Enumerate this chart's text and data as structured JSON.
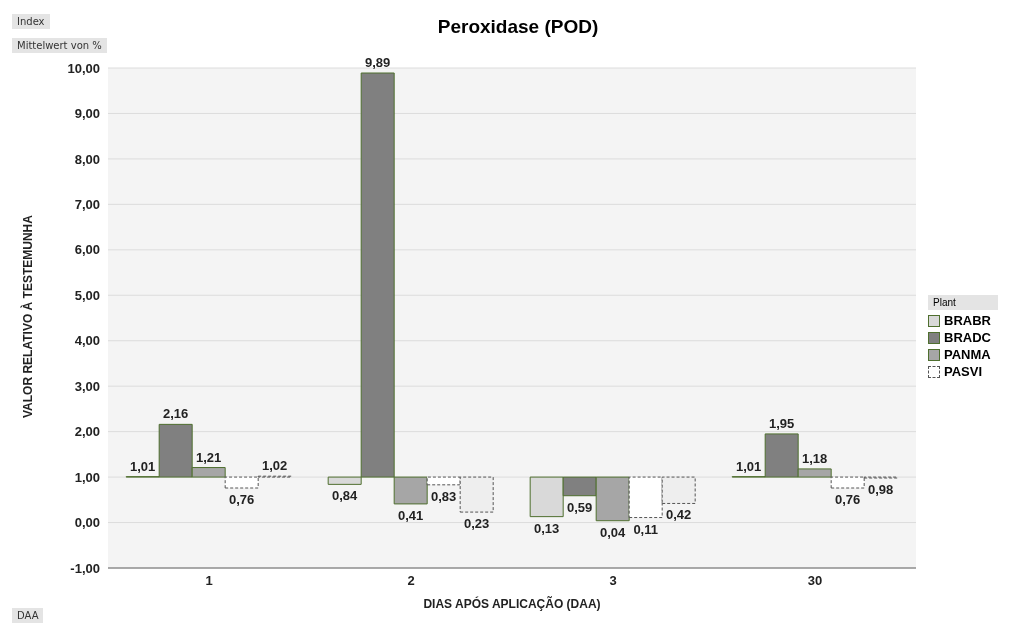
{
  "chart_data": {
    "type": "bar",
    "title": "Peroxidase (POD)",
    "xlabel": "DIAS APÓS APLICAÇÃO (DAA)",
    "ylabel": "VALOR RELATIVO À TESTEMUNHA",
    "legend_title": "Plant",
    "annotations": [
      "Index",
      "Mittelwert von %",
      "DAA"
    ],
    "categories": [
      "1",
      "2",
      "3",
      "30"
    ],
    "series": [
      {
        "name": "BRABR",
        "color": "#d9d9d9",
        "base": [
          1,
          1,
          1,
          1
        ],
        "values": [
          0.01,
          -0.16,
          -0.87,
          0.01
        ],
        "value_labels": [
          "1,01",
          "0,84",
          "0,13",
          "1,01"
        ]
      },
      {
        "name": "BRADC",
        "color": "#808080",
        "base": [
          1,
          1,
          1,
          1
        ],
        "values": [
          1.16,
          8.89,
          -0.41,
          0.95
        ],
        "value_labels": [
          "2,16",
          "9,89",
          "0,59",
          "1,95"
        ]
      },
      {
        "name": "PANMA",
        "color": "#a6a6a6",
        "base": [
          1,
          1,
          1,
          1
        ],
        "values": [
          0.21,
          -0.59,
          -0.96,
          0.18
        ],
        "value_labels": [
          "1,21",
          "0,41",
          "0,04",
          "1,18"
        ]
      },
      {
        "name": "PASVI",
        "color": "#ffffff",
        "base": [
          1,
          1,
          1,
          1
        ],
        "values": [
          -0.24,
          -0.17,
          -0.89,
          -0.24
        ],
        "value_labels": [
          "0,76",
          "0,83",
          "0,11",
          "0,76"
        ]
      },
      {
        "color": "#eeeeee",
        "base": [
          1,
          1,
          1,
          1
        ],
        "values": [
          0.02,
          -0.77,
          -0.58,
          -0.02
        ],
        "value_labels": [
          "1,02",
          "0,23",
          "0,42",
          "0,98"
        ]
      }
    ],
    "ylim": [
      -1,
      10
    ],
    "yticks": [
      {
        "value": -1,
        "label": "-1,00"
      },
      {
        "value": 0,
        "label": "0,00"
      },
      {
        "value": 1,
        "label": "1,00"
      },
      {
        "value": 2,
        "label": "2,00"
      },
      {
        "value": 3,
        "label": "3,00"
      },
      {
        "value": 4,
        "label": "4,00"
      },
      {
        "value": 5,
        "label": "5,00"
      },
      {
        "value": 6,
        "label": "6,00"
      },
      {
        "value": 7,
        "label": "7,00"
      },
      {
        "value": 8,
        "label": "8,00"
      },
      {
        "value": 9,
        "label": "9,00"
      },
      {
        "value": 10,
        "label": "10,00"
      }
    ],
    "grid": "y",
    "legend": "right"
  }
}
